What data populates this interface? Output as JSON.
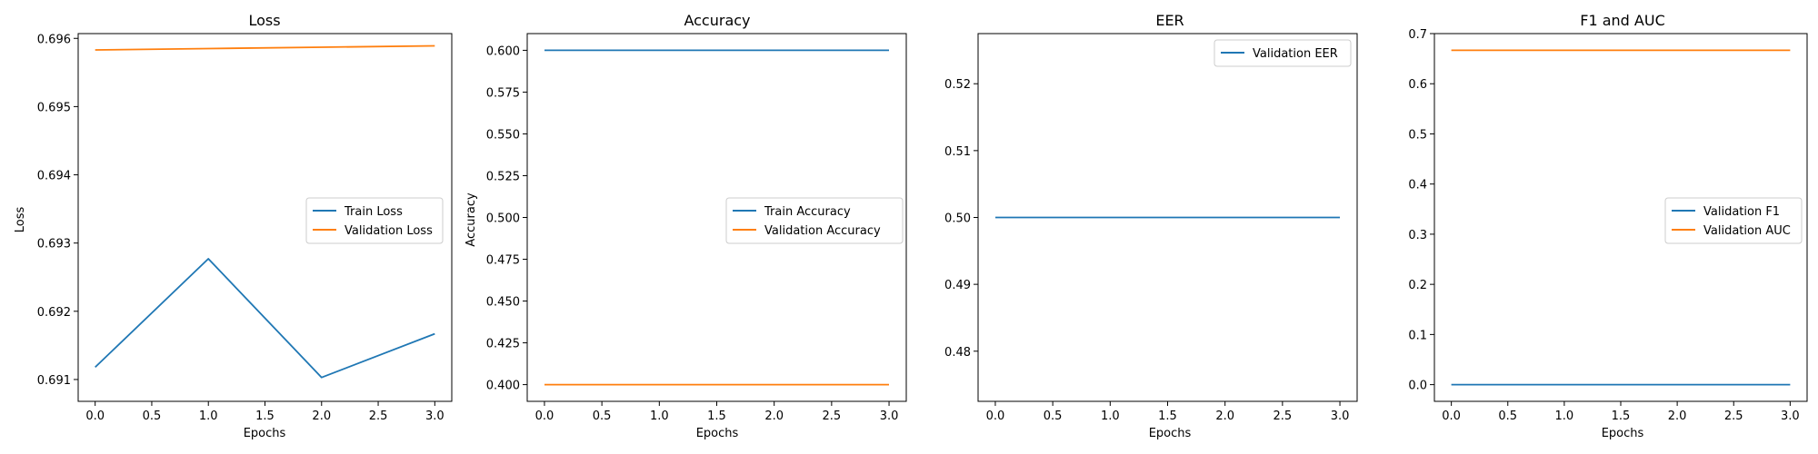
{
  "chart_data": [
    {
      "type": "line",
      "title": "Loss",
      "xlabel": "Epochs",
      "ylabel": "Loss",
      "xlim": [
        -0.15,
        3.15
      ],
      "ylim": [
        0.69068,
        0.69607
      ],
      "x_ticks": [
        0.0,
        0.5,
        1.0,
        1.5,
        2.0,
        2.5,
        3.0
      ],
      "x_tick_labels": [
        "0.0",
        "0.5",
        "1.0",
        "1.5",
        "2.0",
        "2.5",
        "3.0"
      ],
      "y_ticks": [
        0.691,
        0.692,
        0.693,
        0.694,
        0.695,
        0.696
      ],
      "y_tick_labels": [
        "0.691",
        "0.692",
        "0.693",
        "0.694",
        "0.695",
        "0.696"
      ],
      "legend_position": "center-right",
      "grid": false,
      "x": [
        0,
        1,
        2,
        3
      ],
      "series": [
        {
          "name": "Train Loss",
          "color": "#1f77b4",
          "values": [
            0.69118,
            0.69277,
            0.69103,
            0.69167
          ]
        },
        {
          "name": "Validation Loss",
          "color": "#ff7f0e",
          "values": [
            0.69583,
            0.69585,
            0.69587,
            0.69589
          ]
        }
      ]
    },
    {
      "type": "line",
      "title": "Accuracy",
      "xlabel": "Epochs",
      "ylabel": "Accuracy",
      "xlim": [
        -0.15,
        3.15
      ],
      "ylim": [
        0.39,
        0.61
      ],
      "x_ticks": [
        0.0,
        0.5,
        1.0,
        1.5,
        2.0,
        2.5,
        3.0
      ],
      "x_tick_labels": [
        "0.0",
        "0.5",
        "1.0",
        "1.5",
        "2.0",
        "2.5",
        "3.0"
      ],
      "y_ticks": [
        0.4,
        0.425,
        0.45,
        0.475,
        0.5,
        0.525,
        0.55,
        0.575,
        0.6
      ],
      "y_tick_labels": [
        "0.400",
        "0.425",
        "0.450",
        "0.475",
        "0.500",
        "0.525",
        "0.550",
        "0.575",
        "0.600"
      ],
      "legend_position": "center-right",
      "grid": false,
      "x": [
        0,
        1,
        2,
        3
      ],
      "series": [
        {
          "name": "Train Accuracy",
          "color": "#1f77b4",
          "values": [
            0.6,
            0.6,
            0.6,
            0.6
          ]
        },
        {
          "name": "Validation Accuracy",
          "color": "#ff7f0e",
          "values": [
            0.4,
            0.4,
            0.4,
            0.4
          ]
        }
      ]
    },
    {
      "type": "line",
      "title": "EER",
      "xlabel": "Epochs",
      "ylabel": "",
      "xlim": [
        -0.15,
        3.15
      ],
      "ylim": [
        0.4725,
        0.5275
      ],
      "x_ticks": [
        0.0,
        0.5,
        1.0,
        1.5,
        2.0,
        2.5,
        3.0
      ],
      "x_tick_labels": [
        "0.0",
        "0.5",
        "1.0",
        "1.5",
        "2.0",
        "2.5",
        "3.0"
      ],
      "y_ticks": [
        0.48,
        0.49,
        0.5,
        0.51,
        0.52
      ],
      "y_tick_labels": [
        "0.48",
        "0.49",
        "0.50",
        "0.51",
        "0.52"
      ],
      "legend_position": "upper-right",
      "grid": false,
      "x": [
        0,
        1,
        2,
        3
      ],
      "series": [
        {
          "name": "Validation EER",
          "color": "#1f77b4",
          "values": [
            0.5,
            0.5,
            0.5,
            0.5
          ]
        }
      ]
    },
    {
      "type": "line",
      "title": "F1 and AUC",
      "xlabel": "Epochs",
      "ylabel": "",
      "xlim": [
        -0.15,
        3.15
      ],
      "ylim": [
        -0.0333,
        0.7
      ],
      "x_ticks": [
        0.0,
        0.5,
        1.0,
        1.5,
        2.0,
        2.5,
        3.0
      ],
      "x_tick_labels": [
        "0.0",
        "0.5",
        "1.0",
        "1.5",
        "2.0",
        "2.5",
        "3.0"
      ],
      "y_ticks": [
        0.0,
        0.1,
        0.2,
        0.3,
        0.4,
        0.5,
        0.6,
        0.7
      ],
      "y_tick_labels": [
        "0.0",
        "0.1",
        "0.2",
        "0.3",
        "0.4",
        "0.5",
        "0.6",
        "0.7"
      ],
      "legend_position": "center-right",
      "grid": false,
      "x": [
        0,
        1,
        2,
        3
      ],
      "series": [
        {
          "name": "Validation F1",
          "color": "#1f77b4",
          "values": [
            0.0,
            0.0,
            0.0,
            0.0
          ]
        },
        {
          "name": "Validation AUC",
          "color": "#ff7f0e",
          "values": [
            0.6667,
            0.6667,
            0.6667,
            0.6667
          ]
        }
      ]
    }
  ]
}
